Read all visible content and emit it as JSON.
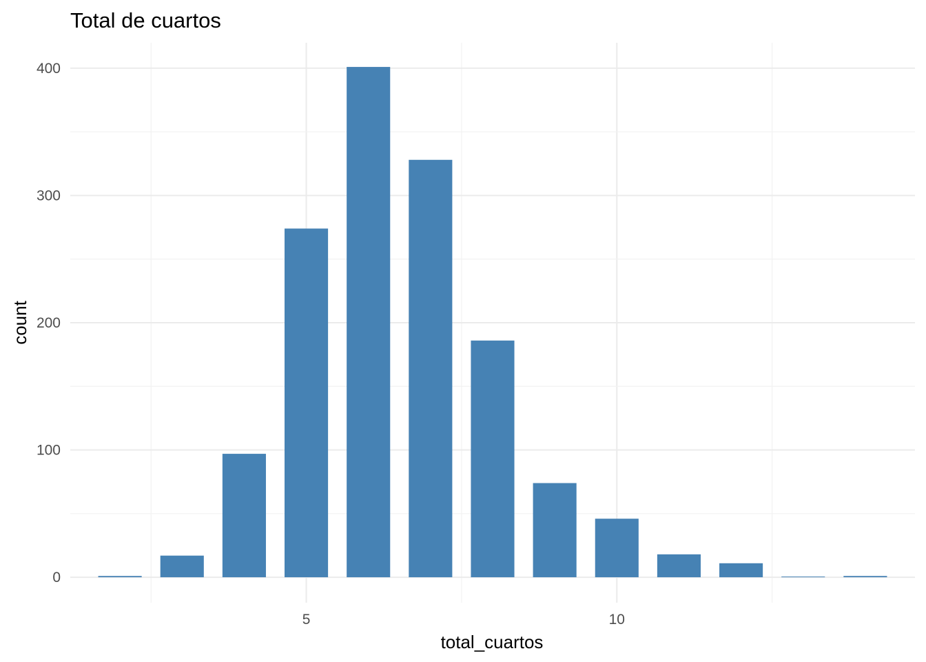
{
  "chart_data": {
    "type": "bar",
    "title": "Total de cuartos",
    "xlabel": "total_cuartos",
    "ylabel": "count",
    "x": [
      2,
      3,
      4,
      5,
      6,
      7,
      8,
      9,
      10,
      11,
      12,
      13,
      14
    ],
    "values": [
      1,
      17,
      97,
      274,
      401,
      328,
      186,
      74,
      46,
      18,
      11,
      0,
      1
    ],
    "xlim": [
      1.2,
      14.8
    ],
    "ylim": [
      -20,
      420
    ],
    "x_ticks": [
      5,
      10
    ],
    "y_ticks": [
      0,
      100,
      200,
      300,
      400
    ],
    "bar_color": "#4682b4",
    "grid": true,
    "legend": "none"
  }
}
